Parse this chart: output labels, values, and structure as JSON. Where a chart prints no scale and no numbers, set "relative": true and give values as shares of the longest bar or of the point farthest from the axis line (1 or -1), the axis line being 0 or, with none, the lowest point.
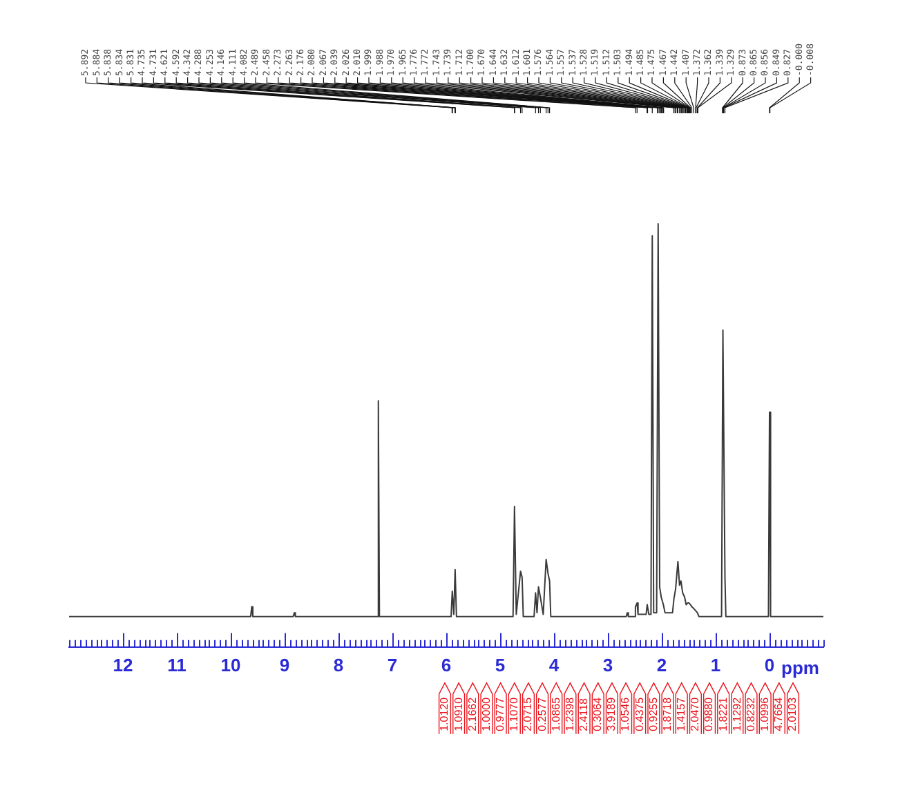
{
  "chart_data": {
    "type": "line",
    "relative": true,
    "color": "#3a3a3a",
    "marker": "none",
    "grid": false,
    "legend": false,
    "xlabel": "ppm",
    "xlim": [
      13,
      -1
    ],
    "xticks": [
      {
        "value": 13,
        "label": null
      },
      {
        "value": 12.9,
        "label": null
      },
      {
        "value": 12.8,
        "label": null
      },
      {
        "value": 12.7,
        "label": null
      },
      {
        "value": 12.6,
        "label": null
      },
      {
        "value": 12.5,
        "label": null
      },
      {
        "value": 12.4,
        "label": null
      },
      {
        "value": 12.3,
        "label": null
      },
      {
        "value": 12.2,
        "label": null
      },
      {
        "value": 12.1,
        "label": null
      },
      12,
      {
        "value": 11.9,
        "label": null
      },
      {
        "value": 11.8,
        "label": null
      },
      {
        "value": 11.7,
        "label": null
      },
      {
        "value": 11.6,
        "label": null
      },
      {
        "value": 11.5,
        "label": null
      },
      {
        "value": 11.4,
        "label": null
      },
      {
        "value": 11.3,
        "label": null
      },
      {
        "value": 11.2,
        "label": null
      },
      {
        "value": 11.1,
        "label": null
      },
      11,
      {
        "value": 10.9,
        "label": null
      },
      {
        "value": 10.8,
        "label": null
      },
      {
        "value": 10.7,
        "label": null
      },
      {
        "value": 10.6,
        "label": null
      },
      {
        "value": 10.5,
        "label": null
      },
      {
        "value": 10.4,
        "label": null
      },
      {
        "value": 10.3,
        "label": null
      },
      {
        "value": 10.2,
        "label": null
      },
      {
        "value": 10.1,
        "label": null
      },
      10,
      {
        "value": 9.9,
        "label": null
      },
      {
        "value": 9.8,
        "label": null
      },
      {
        "value": 9.7,
        "label": null
      },
      {
        "value": 9.6,
        "label": null
      },
      {
        "value": 9.5,
        "label": null
      },
      {
        "value": 9.4,
        "label": null
      },
      {
        "value": 9.3,
        "label": null
      },
      {
        "value": 9.2,
        "label": null
      },
      {
        "value": 9.1,
        "label": null
      },
      9,
      {
        "value": 8.9,
        "label": null
      },
      {
        "value": 8.8,
        "label": null
      },
      {
        "value": 8.7,
        "label": null
      },
      {
        "value": 8.6,
        "label": null
      },
      {
        "value": 8.5,
        "label": null
      },
      {
        "value": 8.4,
        "label": null
      },
      {
        "value": 8.3,
        "label": null
      },
      {
        "value": 8.2,
        "label": null
      },
      {
        "value": 8.1,
        "label": null
      },
      8,
      {
        "value": 7.9,
        "label": null
      },
      {
        "value": 7.8,
        "label": null
      },
      {
        "value": 7.7,
        "label": null
      },
      {
        "value": 7.6,
        "label": null
      },
      {
        "value": 7.5,
        "label": null
      },
      {
        "value": 7.4,
        "label": null
      },
      {
        "value": 7.3,
        "label": null
      },
      {
        "value": 7.2,
        "label": null
      },
      {
        "value": 7.1,
        "label": null
      },
      7,
      {
        "value": 6.9,
        "label": null
      },
      {
        "value": 6.8,
        "label": null
      },
      {
        "value": 6.7,
        "label": null
      },
      {
        "value": 6.6,
        "label": null
      },
      {
        "value": 6.5,
        "label": null
      },
      {
        "value": 6.4,
        "label": null
      },
      {
        "value": 6.3,
        "label": null
      },
      {
        "value": 6.2,
        "label": null
      },
      {
        "value": 6.1,
        "label": null
      },
      6,
      {
        "value": 5.9,
        "label": null
      },
      {
        "value": 5.8,
        "label": null
      },
      {
        "value": 5.7,
        "label": null
      },
      {
        "value": 5.6,
        "label": null
      },
      {
        "value": 5.5,
        "label": null
      },
      {
        "value": 5.4,
        "label": null
      },
      {
        "value": 5.3,
        "label": null
      },
      {
        "value": 5.2,
        "label": null
      },
      {
        "value": 5.1,
        "label": null
      },
      5,
      {
        "value": 4.9,
        "label": null
      },
      {
        "value": 4.8,
        "label": null
      },
      {
        "value": 4.7,
        "label": null
      },
      {
        "value": 4.6,
        "label": null
      },
      {
        "value": 4.5,
        "label": null
      },
      {
        "value": 4.4,
        "label": null
      },
      {
        "value": 4.3,
        "label": null
      },
      {
        "value": 4.2,
        "label": null
      },
      {
        "value": 4.1,
        "label": null
      },
      4,
      {
        "value": 3.9,
        "label": null
      },
      {
        "value": 3.8,
        "label": null
      },
      {
        "value": 3.7,
        "label": null
      },
      {
        "value": 3.6,
        "label": null
      },
      {
        "value": 3.5,
        "label": null
      },
      {
        "value": 3.4,
        "label": null
      },
      {
        "value": 3.3,
        "label": null
      },
      {
        "value": 3.2,
        "label": null
      },
      {
        "value": 3.1,
        "label": null
      },
      3,
      {
        "value": 2.9,
        "label": null
      },
      {
        "value": 2.8,
        "label": null
      },
      {
        "value": 2.7,
        "label": null
      },
      {
        "value": 2.6,
        "label": null
      },
      {
        "value": 2.5,
        "label": null
      },
      {
        "value": 2.4,
        "label": null
      },
      {
        "value": 2.3,
        "label": null
      },
      {
        "value": 2.2,
        "label": null
      },
      {
        "value": 2.1,
        "label": null
      },
      2,
      {
        "value": 1.9,
        "label": null
      },
      {
        "value": 1.8,
        "label": null
      },
      {
        "value": 1.7,
        "label": null
      },
      {
        "value": 1.6,
        "label": null
      },
      {
        "value": 1.5,
        "label": null
      },
      {
        "value": 1.4,
        "label": null
      },
      {
        "value": 1.3,
        "label": null
      },
      {
        "value": 1.2,
        "label": null
      },
      {
        "value": 1.1,
        "label": null
      },
      1,
      {
        "value": 0.9,
        "label": null
      },
      {
        "value": 0.8,
        "label": null
      },
      {
        "value": 0.7,
        "label": null
      },
      {
        "value": 0.6,
        "label": null
      },
      {
        "value": 0.5,
        "label": null
      },
      {
        "value": 0.4,
        "label": null
      },
      {
        "value": 0.3,
        "label": null
      },
      {
        "value": 0.2,
        "label": null
      },
      {
        "value": 0.1,
        "label": null
      },
      0,
      {
        "value": -0.1,
        "label": null
      },
      {
        "value": -0.2,
        "label": null
      },
      {
        "value": -0.3,
        "label": null
      },
      {
        "value": -0.4,
        "label": null
      },
      {
        "value": -0.5,
        "label": null
      },
      {
        "value": -0.6,
        "label": null
      },
      {
        "value": -0.7,
        "label": null
      },
      {
        "value": -0.8,
        "label": null
      },
      {
        "value": -0.9,
        "label": null
      },
      {
        "value": -1,
        "label": null
      }
    ],
    "x": [
      13,
      9.63,
      9.61,
      9.59,
      8.84,
      8.82,
      8.8,
      7.28,
      7.26,
      7.24,
      5.91,
      5.888,
      5.86,
      5.835,
      5.81,
      4.76,
      4.733,
      4.7,
      4.621,
      4.592,
      4.57,
      4.37,
      4.342,
      4.315,
      4.288,
      4.253,
      4.2,
      4.146,
      4.111,
      4.082,
      4.06,
      2.66,
      2.64,
      2.62,
      2.51,
      2.489,
      2.458,
      2.44,
      2.29,
      2.27,
      2.24,
      2.2,
      2.176,
      2.15,
      2.095,
      2.067,
      2.039,
      2.01,
      1.97,
      1.94,
      1.8,
      1.774,
      1.743,
      1.7,
      1.67,
      1.644,
      1.612,
      1.576,
      1.547,
      1.519,
      1.494,
      1.467,
      1.442,
      1.407,
      1.372,
      1.339,
      1.31,
      0.89,
      0.865,
      0.827,
      0.81,
      0.02,
      0,
      -0.02,
      -1
    ],
    "values": [
      0.072,
      0.072,
      0.095,
      0.072,
      0.072,
      0.081,
      0.072,
      0.072,
      0.582,
      0.072,
      0.072,
      0.132,
      0.077,
      0.183,
      0.072,
      0.072,
      0.332,
      0.077,
      0.179,
      0.165,
      0.072,
      0.072,
      0.128,
      0.081,
      0.142,
      0.118,
      0.077,
      0.207,
      0.174,
      0.156,
      0.072,
      0.072,
      0.081,
      0.072,
      0.072,
      0.095,
      0.104,
      0.077,
      0.077,
      0.1,
      0.077,
      0.077,
      0.972,
      0.081,
      0.081,
      1,
      0.142,
      0.118,
      0.1,
      0.081,
      0.081,
      0.114,
      0.137,
      0.202,
      0.146,
      0.156,
      0.128,
      0.118,
      0.1,
      0.104,
      0.104,
      0.1,
      0.095,
      0.091,
      0.086,
      0.081,
      0.072,
      0.072,
      0.749,
      0.165,
      0.072,
      0.072,
      0.555,
      0.072,
      0.072
    ],
    "annotations": [
      {
        "text": "5.892",
        "x": 5.892
      },
      {
        "text": "5.884",
        "x": 5.884
      },
      {
        "text": "5.838",
        "x": 5.838
      },
      {
        "text": "5.834",
        "x": 5.834
      },
      {
        "text": "5.831",
        "x": 5.831
      },
      {
        "text": "4.735",
        "x": 4.735
      },
      {
        "text": "4.731",
        "x": 4.731
      },
      {
        "text": "4.621",
        "x": 4.621
      },
      {
        "text": "4.592",
        "x": 4.592
      },
      {
        "text": "4.342",
        "x": 4.342
      },
      {
        "text": "4.288",
        "x": 4.288
      },
      {
        "text": "4.253",
        "x": 4.253
      },
      {
        "text": "4.146",
        "x": 4.146
      },
      {
        "text": "4.111",
        "x": 4.111
      },
      {
        "text": "4.082",
        "x": 4.082
      },
      {
        "text": "2.489",
        "x": 2.489
      },
      {
        "text": "2.458",
        "x": 2.458
      },
      {
        "text": "2.273",
        "x": 2.273
      },
      {
        "text": "2.263",
        "x": 2.263
      },
      {
        "text": "2.176",
        "x": 2.176
      },
      {
        "text": "2.080",
        "x": 2.08
      },
      {
        "text": "2.067",
        "x": 2.067
      },
      {
        "text": "2.039",
        "x": 2.039
      },
      {
        "text": "2.026",
        "x": 2.026
      },
      {
        "text": "2.010",
        "x": 2.01
      },
      {
        "text": "1.999",
        "x": 1.999
      },
      {
        "text": "1.988",
        "x": 1.988
      },
      {
        "text": "1.970",
        "x": 1.97
      },
      {
        "text": "1.965",
        "x": 1.965
      },
      {
        "text": "1.776",
        "x": 1.776
      },
      {
        "text": "1.772",
        "x": 1.772
      },
      {
        "text": "1.743",
        "x": 1.743
      },
      {
        "text": "1.739",
        "x": 1.739
      },
      {
        "text": "1.712",
        "x": 1.712
      },
      {
        "text": "1.700",
        "x": 1.7
      },
      {
        "text": "1.670",
        "x": 1.67
      },
      {
        "text": "1.644",
        "x": 1.644
      },
      {
        "text": "1.632",
        "x": 1.632
      },
      {
        "text": "1.612",
        "x": 1.612
      },
      {
        "text": "1.601",
        "x": 1.601
      },
      {
        "text": "1.576",
        "x": 1.576
      },
      {
        "text": "1.564",
        "x": 1.564
      },
      {
        "text": "1.557",
        "x": 1.557
      },
      {
        "text": "1.537",
        "x": 1.537
      },
      {
        "text": "1.528",
        "x": 1.528
      },
      {
        "text": "1.519",
        "x": 1.519
      },
      {
        "text": "1.512",
        "x": 1.512
      },
      {
        "text": "1.503",
        "x": 1.503
      },
      {
        "text": "1.494",
        "x": 1.494
      },
      {
        "text": "1.485",
        "x": 1.485
      },
      {
        "text": "1.475",
        "x": 1.475
      },
      {
        "text": "1.467",
        "x": 1.467
      },
      {
        "text": "1.442",
        "x": 1.442
      },
      {
        "text": "1.407",
        "x": 1.407
      },
      {
        "text": "1.372",
        "x": 1.372
      },
      {
        "text": "1.362",
        "x": 1.362
      },
      {
        "text": "1.339",
        "x": 1.339
      },
      {
        "text": "1.329",
        "x": 1.329
      },
      {
        "text": "0.873",
        "x": 0.873
      },
      {
        "text": "0.865",
        "x": 0.865
      },
      {
        "text": "0.856",
        "x": 0.856
      },
      {
        "text": "0.849",
        "x": 0.849
      },
      {
        "text": "0.827",
        "x": 0.827
      },
      {
        "text": "-0.000",
        "x": 0
      },
      {
        "text": "-0.008",
        "x": -0.008
      },
      "1.0120",
      "1.0910",
      "2.1662",
      "1.0000",
      "0.9777",
      "1.1070",
      "2.0715",
      "0.2577",
      "1.0865",
      "1.2398",
      "2.4118",
      "0.3064",
      "3.9189",
      "1.0546",
      "0.4375",
      "0.9255",
      "1.8718",
      "1.4157",
      "2.0470",
      "0.9880",
      "1.8221",
      "1.1292",
      "0.8232",
      "1.0996",
      "4.7664",
      "2.0103"
    ]
  }
}
